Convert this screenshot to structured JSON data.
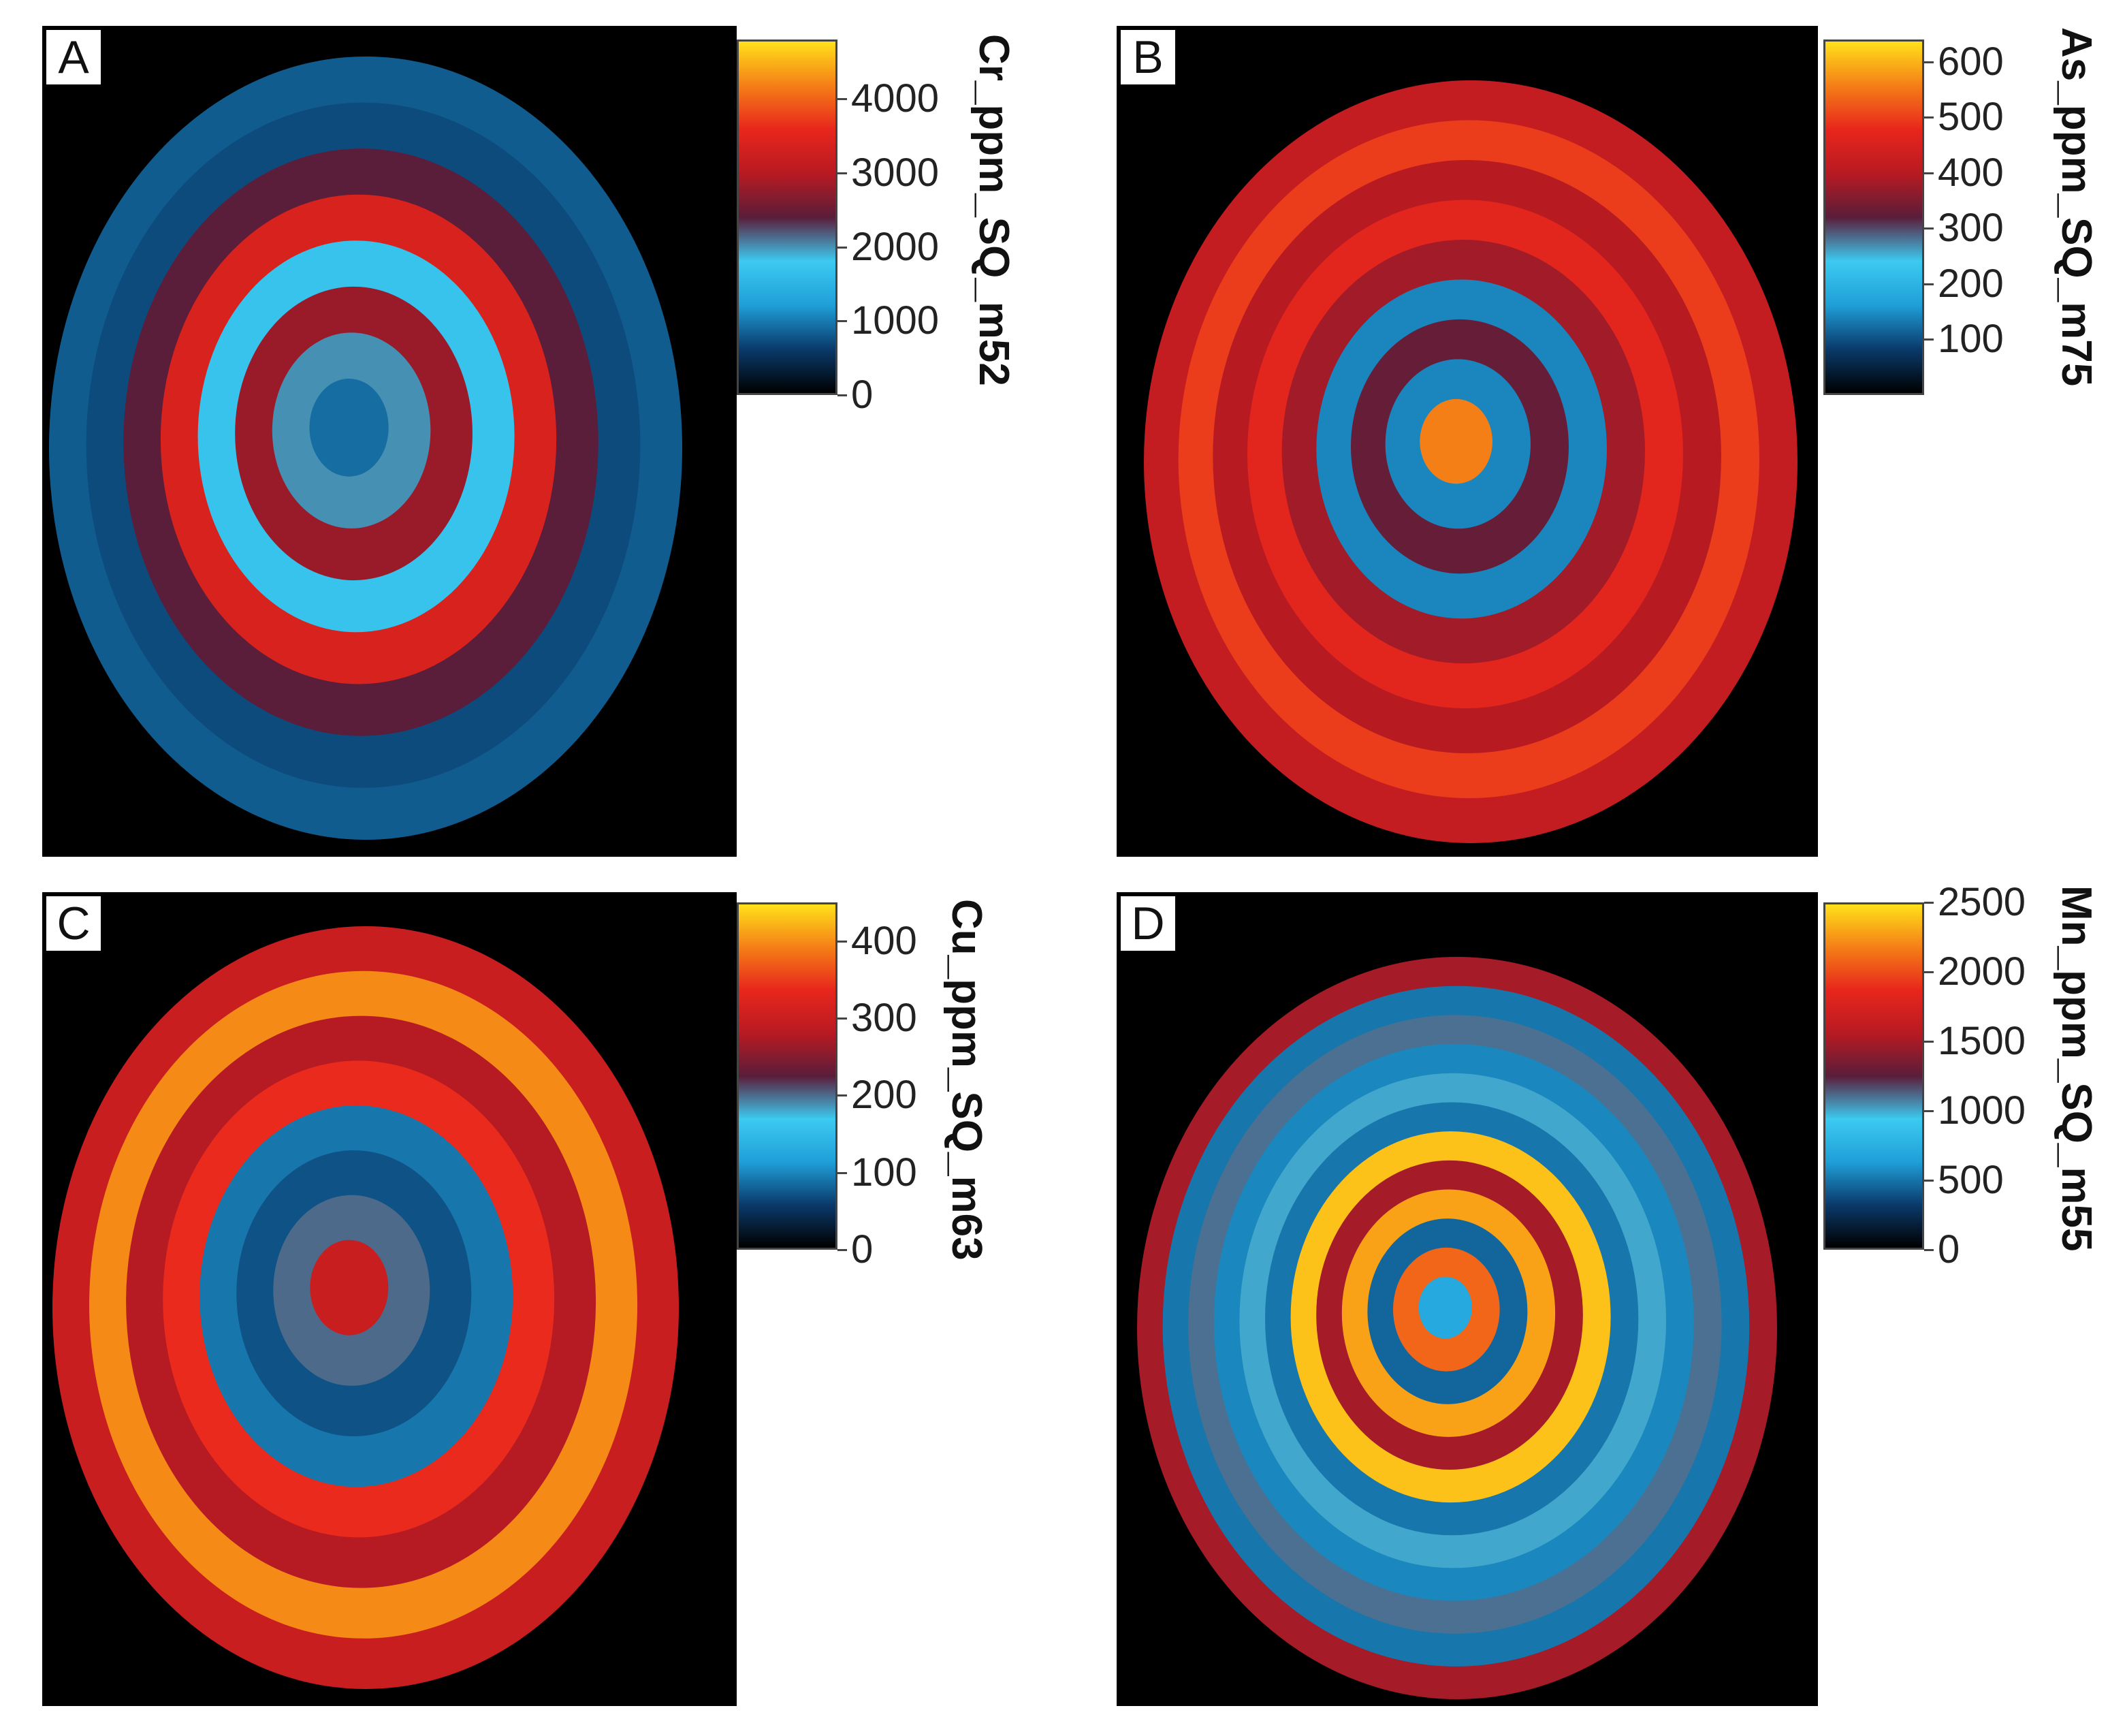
{
  "chart_data": [
    {
      "type": "heatmap",
      "panel": "A",
      "colorbar_label": "Cr_ppm_SQ_m52",
      "colorbar_ticks": [
        0,
        1000,
        2000,
        3000,
        4000
      ],
      "range": [
        0,
        4800
      ],
      "rings_outer_to_inner": [
        800,
        700,
        2400,
        3400,
        1700,
        2800,
        2000,
        900
      ],
      "cmap": [
        "#000000",
        "#0a3a6b",
        "#1f9fd8",
        "#3ccaf0",
        "#5a1d3a",
        "#b81a22",
        "#e8261c",
        "#f57f17",
        "#ffe11a"
      ]
    },
    {
      "type": "heatmap",
      "panel": "B",
      "colorbar_label": "As_ppm_SQ_m75",
      "colorbar_ticks": [
        100,
        200,
        300,
        400,
        500,
        600
      ],
      "range": [
        0,
        640
      ],
      "rings_outer_to_inner": [
        420,
        500,
        400,
        470,
        380,
        140,
        330,
        140,
        560
      ],
      "cmap": [
        "#000000",
        "#0a3a6b",
        "#1f9fd8",
        "#3ccaf0",
        "#5a1d3a",
        "#b81a22",
        "#e8261c",
        "#f57f17",
        "#ffe11a"
      ]
    },
    {
      "type": "heatmap",
      "panel": "C",
      "colorbar_label": "Cu_ppm_SQ_m63",
      "colorbar_ticks": [
        0,
        100,
        200,
        300,
        400
      ],
      "range": [
        0,
        450
      ],
      "rings_outer_to_inner": [
        300,
        400,
        280,
        340,
        90,
        70,
        200,
        300
      ],
      "cmap": [
        "#000000",
        "#0a3a6b",
        "#1f9fd8",
        "#3ccaf0",
        "#5a1d3a",
        "#b81a22",
        "#e8261c",
        "#f57f17",
        "#ffe11a"
      ]
    },
    {
      "type": "heatmap",
      "panel": "D",
      "colorbar_label": "Mn_ppm_SQ_m55",
      "colorbar_ticks": [
        0,
        500,
        1000,
        1500,
        2000,
        2500
      ],
      "range": [
        0,
        2500
      ],
      "rings_outer_to_inner": [
        1500,
        500,
        1100,
        550,
        1000,
        500,
        2400,
        1500,
        2300,
        450,
        2100,
        700
      ],
      "cmap": [
        "#000000",
        "#0a3a6b",
        "#1f9fd8",
        "#3ccaf0",
        "#5a1d3a",
        "#b81a22",
        "#e8261c",
        "#f57f17",
        "#ffe11a"
      ]
    }
  ]
}
